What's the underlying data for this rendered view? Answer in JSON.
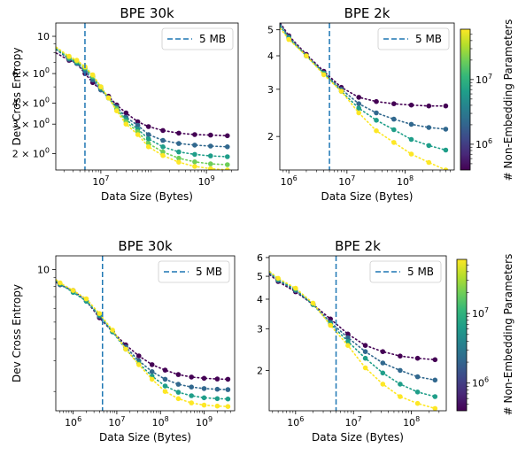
{
  "colors": {
    "vline": "#1f77b4",
    "viridis": [
      "#440154",
      "#482878",
      "#3e4989",
      "#31688e",
      "#26828e",
      "#1f9e89",
      "#35b779",
      "#6ece58",
      "#b5de2b",
      "#fde725"
    ]
  },
  "colorbar": {
    "label": "# Non-Embedding Parameters",
    "ticks": [
      {
        "base": "10",
        "exp": "6",
        "value": 1000000
      },
      {
        "base": "10",
        "exp": "7",
        "value": 10000000
      }
    ],
    "range": [
      400000,
      60000000
    ]
  },
  "chart_data": [
    {
      "type": "scatter",
      "title": "BPE 30k",
      "xlabel": "Data Size (Bytes)",
      "ylabel": "Dev Cross Entropy",
      "xscale": "log",
      "yscale": "log",
      "xlim": [
        1400000,
        4000000000
      ],
      "ylim": [
        1.6,
        12
      ],
      "xticks": [
        {
          "base": "10",
          "exp": "7",
          "value": 10000000
        },
        {
          "base": "10",
          "exp": "9",
          "value": 1000000000
        }
      ],
      "yticks": [
        {
          "text": "10",
          "value": 10
        },
        {
          "base": "6 × 10",
          "exp": "0",
          "value": 6
        },
        {
          "base": "4 × 10",
          "exp": "0",
          "value": 4
        },
        {
          "base": "3 × 10",
          "exp": "0",
          "value": 3
        },
        {
          "base": "2 × 10",
          "exp": "0",
          "value": 2
        }
      ],
      "vline": {
        "x": 5000000,
        "label": "5 MB"
      },
      "legend": "top-right",
      "x": [
        2500000,
        3500000,
        5000000,
        7000000,
        10000000,
        14000000,
        20000000,
        30000000,
        50000000,
        80000000,
        150000000,
        300000000,
        600000000,
        1200000000,
        2500000000
      ],
      "series": [
        {
          "color": "#440154",
          "values": [
            7.2,
            6.9,
            6.0,
            5.3,
            4.8,
            4.4,
            3.9,
            3.5,
            3.1,
            2.9,
            2.75,
            2.65,
            2.6,
            2.58,
            2.56
          ]
        },
        {
          "color": "#31688e",
          "values": [
            7.3,
            6.9,
            6.2,
            5.5,
            4.8,
            4.3,
            3.8,
            3.3,
            2.95,
            2.6,
            2.4,
            2.3,
            2.25,
            2.22,
            2.2
          ]
        },
        {
          "color": "#1f9e89",
          "values": [
            7.4,
            7.0,
            6.4,
            5.7,
            4.9,
            4.3,
            3.7,
            3.2,
            2.8,
            2.45,
            2.2,
            2.05,
            1.98,
            1.94,
            1.92
          ]
        },
        {
          "color": "#6ece58",
          "values": [
            7.5,
            7.1,
            6.5,
            5.8,
            5.0,
            4.3,
            3.7,
            3.1,
            2.7,
            2.3,
            2.05,
            1.88,
            1.79,
            1.74,
            1.72
          ]
        },
        {
          "color": "#fde725",
          "values": [
            7.6,
            7.2,
            6.6,
            5.9,
            5.0,
            4.3,
            3.6,
            3.0,
            2.6,
            2.2,
            1.95,
            1.78,
            1.68,
            1.63,
            1.6
          ]
        }
      ]
    },
    {
      "type": "scatter",
      "title": "BPE 2k",
      "xlabel": "Data Size (Bytes)",
      "ylabel": "",
      "xscale": "log",
      "yscale": "log",
      "xlim": [
        700000,
        700000000
      ],
      "ylim": [
        1.5,
        5.3
      ],
      "xticks": [
        {
          "base": "10",
          "exp": "6",
          "value": 1000000
        },
        {
          "base": "10",
          "exp": "7",
          "value": 10000000
        },
        {
          "base": "10",
          "exp": "8",
          "value": 100000000
        }
      ],
      "yticks": [
        {
          "text": "5",
          "value": 5
        },
        {
          "text": "4",
          "value": 4
        },
        {
          "text": "3",
          "value": 3
        },
        {
          "text": "2",
          "value": 2
        }
      ],
      "vline": {
        "x": 5000000,
        "label": "5 MB"
      },
      "legend": "top-right",
      "x": [
        1000000,
        2000000,
        4000000,
        8000000,
        16000000,
        32000000,
        64000000,
        128000000,
        256000000,
        500000000
      ],
      "series": [
        {
          "color": "#440154",
          "values": [
            4.75,
            4.05,
            3.5,
            3.05,
            2.8,
            2.7,
            2.65,
            2.62,
            2.6,
            2.6
          ]
        },
        {
          "color": "#31688e",
          "values": [
            4.7,
            4.0,
            3.45,
            3.0,
            2.65,
            2.45,
            2.32,
            2.22,
            2.16,
            2.13
          ]
        },
        {
          "color": "#1f9e89",
          "values": [
            4.65,
            4.0,
            3.45,
            2.95,
            2.55,
            2.3,
            2.12,
            1.95,
            1.85,
            1.78
          ]
        },
        {
          "color": "#fde725",
          "values": [
            4.6,
            4.0,
            3.4,
            2.95,
            2.45,
            2.1,
            1.9,
            1.72,
            1.6,
            1.5
          ]
        }
      ]
    },
    {
      "type": "scatter",
      "title": "BPE 30k",
      "xlabel": "Data Size (Bytes)",
      "ylabel": "Dev Cross Entropy",
      "xscale": "log",
      "yscale": "log",
      "xlim": [
        400000,
        5000000000
      ],
      "ylim": [
        1.55,
        12
      ],
      "xticks": [
        {
          "base": "10",
          "exp": "6",
          "value": 1000000
        },
        {
          "base": "10",
          "exp": "7",
          "value": 10000000
        },
        {
          "base": "10",
          "exp": "8",
          "value": 100000000
        },
        {
          "base": "10",
          "exp": "9",
          "value": 1000000000
        }
      ],
      "yticks": [
        {
          "text": "10",
          "value": 10
        }
      ],
      "vline": {
        "x": 4700000,
        "label": "5 MB"
      },
      "legend": "top-right",
      "x": [
        500000,
        1000000,
        2000000,
        4000000,
        8000000,
        16000000,
        32000000,
        64000000,
        128000000,
        256000000,
        512000000,
        1000000000,
        2000000000,
        3500000000
      ],
      "series": [
        {
          "color": "#440154",
          "values": [
            8.2,
            7.6,
            6.6,
            5.3,
            4.4,
            3.7,
            3.2,
            2.85,
            2.65,
            2.5,
            2.42,
            2.38,
            2.36,
            2.35
          ]
        },
        {
          "color": "#31688e",
          "values": [
            8.2,
            7.5,
            6.6,
            5.4,
            4.4,
            3.6,
            3.0,
            2.6,
            2.35,
            2.2,
            2.12,
            2.08,
            2.06,
            2.05
          ]
        },
        {
          "color": "#1f9e89",
          "values": [
            8.3,
            7.4,
            6.6,
            5.5,
            4.4,
            3.5,
            2.9,
            2.45,
            2.15,
            1.98,
            1.89,
            1.84,
            1.82,
            1.81
          ]
        },
        {
          "color": "#fde725",
          "values": [
            8.4,
            7.6,
            6.8,
            5.6,
            4.5,
            3.5,
            2.85,
            2.35,
            2.0,
            1.82,
            1.72,
            1.67,
            1.65,
            1.64
          ]
        }
      ]
    },
    {
      "type": "scatter",
      "title": "BPE 2k",
      "xlabel": "Data Size (Bytes)",
      "ylabel": "",
      "xscale": "log",
      "yscale": "log",
      "xlim": [
        350000,
        400000000
      ],
      "ylim": [
        1.35,
        6.1
      ],
      "xticks": [
        {
          "base": "10",
          "exp": "6",
          "value": 1000000
        },
        {
          "base": "10",
          "exp": "7",
          "value": 10000000
        },
        {
          "base": "10",
          "exp": "8",
          "value": 100000000
        }
      ],
      "yticks": [
        {
          "text": "6",
          "value": 6
        },
        {
          "text": "5",
          "value": 5
        },
        {
          "text": "4",
          "value": 4
        },
        {
          "text": "3",
          "value": 3
        },
        {
          "text": "2",
          "value": 2
        }
      ],
      "vline": {
        "x": 5000000,
        "label": "5 MB"
      },
      "legend": "top-right",
      "x": [
        500000,
        1000000,
        2000000,
        4000000,
        8000000,
        16000000,
        32000000,
        64000000,
        128000000,
        256000000
      ],
      "series": [
        {
          "color": "#440154",
          "values": [
            4.75,
            4.3,
            3.8,
            3.3,
            2.85,
            2.55,
            2.4,
            2.3,
            2.25,
            2.22
          ]
        },
        {
          "color": "#31688e",
          "values": [
            4.8,
            4.35,
            3.8,
            3.2,
            2.75,
            2.4,
            2.15,
            2.0,
            1.88,
            1.82
          ]
        },
        {
          "color": "#1f9e89",
          "values": [
            4.85,
            4.4,
            3.8,
            3.15,
            2.65,
            2.25,
            1.95,
            1.75,
            1.62,
            1.55
          ]
        },
        {
          "color": "#fde725",
          "values": [
            4.9,
            4.45,
            3.85,
            3.1,
            2.55,
            2.05,
            1.75,
            1.55,
            1.45,
            1.38
          ]
        }
      ]
    }
  ]
}
